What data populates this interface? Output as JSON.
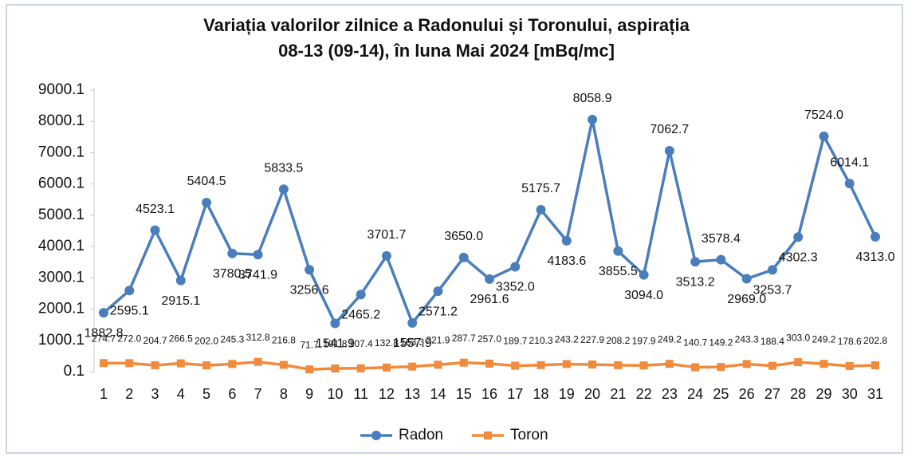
{
  "chart_data": {
    "type": "line",
    "title": [
      "Variația valorilor zilnice a Radonului și Toronului, aspirația",
      "08-13 (09-14), în luna Mai 2024 [mBq/mc]"
    ],
    "categories": [
      "1",
      "2",
      "3",
      "4",
      "5",
      "6",
      "7",
      "8",
      "9",
      "10",
      "11",
      "12",
      "13",
      "14",
      "15",
      "16",
      "17",
      "18",
      "19",
      "20",
      "21",
      "22",
      "23",
      "24",
      "25",
      "26",
      "27",
      "28",
      "29",
      "30",
      "31"
    ],
    "series": [
      {
        "name": "Radon",
        "color": "#4a7ebb",
        "values": [
          1882.8,
          2595.1,
          4523.1,
          2915.1,
          5404.5,
          3780.5,
          3741.9,
          5833.5,
          3256.6,
          1541.9,
          2465.2,
          3701.7,
          1557.9,
          2571.2,
          3650.0,
          2961.6,
          3352.0,
          5175.7,
          4183.6,
          8058.9,
          3855.5,
          3094.0,
          7062.7,
          3513.2,
          3578.4,
          2969.0,
          3253.7,
          4302.3,
          7524.0,
          6014.1,
          4313.0
        ],
        "value_labels": [
          "1882.8",
          "2595.1",
          "4523.1",
          "2915.1",
          "5404.5",
          "3780.5",
          "3741.9",
          "5833.5",
          "3256.6",
          "1541.9",
          "2465.2",
          "3701.7",
          "1557.9",
          "2571.2",
          "3650.0",
          "2961.6",
          "3352.0",
          "5175.7",
          "4183.6",
          "8058.9",
          "3855.5",
          "3094.0",
          "7062.7",
          "3513.2",
          "3578.4",
          "2969.0",
          "3253.7",
          "4302.3",
          "7524.0",
          "6014.1",
          "4313.0"
        ]
      },
      {
        "name": "Toron",
        "color": "#f08a3c",
        "values": [
          274.7,
          272.0,
          204.7,
          266.5,
          202.0,
          245.3,
          312.8,
          216.8,
          71.7,
          101.8,
          107.4,
          132.8,
          163.3,
          221.9,
          287.7,
          257.0,
          189.7,
          210.3,
          243.2,
          227.9,
          208.2,
          197.9,
          249.2,
          140.7,
          149.2,
          243.3,
          188.4,
          303.0,
          249.2,
          178.6,
          202.8
        ],
        "value_labels": [
          "274.7",
          "272.0",
          "204.7",
          "266.5",
          "202.0",
          "245.3",
          "312.8",
          "216.8",
          "71.7",
          "101.8",
          "107.4",
          "132.8",
          "163.3",
          "221.9",
          "287.7",
          "257.0",
          "189.7",
          "210.3",
          "243.2",
          "227.9",
          "208.2",
          "197.9",
          "249.2",
          "140.7",
          "149.2",
          "243.3",
          "188.4",
          "303.0",
          "249.2",
          "178.6",
          "202.8"
        ]
      }
    ],
    "ylim": [
      0.1,
      9000.1
    ],
    "yticks": [
      0.1,
      1000.1,
      2000.1,
      3000.1,
      4000.1,
      5000.1,
      6000.1,
      7000.1,
      8000.1,
      9000.1
    ],
    "grid": false,
    "legend": "bottom"
  }
}
